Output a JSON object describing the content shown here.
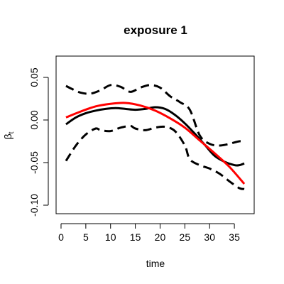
{
  "chart_data": {
    "type": "line",
    "title": "exposure 1",
    "xlabel": "time",
    "ylabel": "β",
    "ylabel_subscript": "t",
    "xlim": [
      -1,
      39
    ],
    "ylim": [
      -0.11,
      0.075
    ],
    "xticks": [
      0,
      5,
      10,
      15,
      20,
      25,
      30,
      35
    ],
    "yticks": [
      -0.1,
      -0.05,
      0.0,
      0.05
    ],
    "ytick_labels": [
      "-0.10",
      "-0.05",
      "0.00",
      "0.05"
    ],
    "grid": false,
    "legend": "none",
    "series": [
      {
        "style": "dashed",
        "color": "#000000",
        "width": 3,
        "x": [
          1,
          2,
          4,
          6,
          8,
          10,
          12,
          14,
          16,
          18,
          20,
          22,
          24,
          26,
          28,
          30,
          32,
          34,
          36,
          37
        ],
        "y": [
          0.04,
          0.037,
          0.032,
          0.031,
          0.035,
          0.041,
          0.039,
          0.033,
          0.038,
          0.041,
          0.038,
          0.028,
          0.021,
          0.012,
          -0.018,
          -0.028,
          -0.03,
          -0.028,
          -0.025,
          -0.026
        ]
      },
      {
        "style": "dashed",
        "color": "#000000",
        "width": 3,
        "x": [
          1,
          3,
          5,
          7,
          8,
          10,
          12,
          14,
          15,
          17,
          19,
          21,
          23,
          25,
          26,
          28,
          30,
          32,
          34,
          36,
          37
        ],
        "y": [
          -0.048,
          -0.03,
          -0.017,
          -0.01,
          -0.012,
          -0.013,
          -0.009,
          -0.007,
          -0.01,
          -0.012,
          -0.009,
          -0.008,
          -0.013,
          -0.03,
          -0.046,
          -0.053,
          -0.057,
          -0.063,
          -0.072,
          -0.08,
          -0.081
        ]
      },
      {
        "style": "solid",
        "color": "#000000",
        "width": 3,
        "x": [
          1,
          3,
          5,
          7,
          9,
          11,
          13,
          15,
          17,
          19,
          21,
          23,
          25,
          27,
          29,
          31,
          33,
          35,
          36,
          37
        ],
        "y": [
          -0.005,
          0.003,
          0.008,
          0.011,
          0.013,
          0.014,
          0.013,
          0.012,
          0.013,
          0.015,
          0.013,
          0.006,
          -0.004,
          -0.016,
          -0.029,
          -0.042,
          -0.049,
          -0.053,
          -0.053,
          -0.051
        ]
      },
      {
        "style": "solid",
        "color": "#ff0000",
        "width": 3,
        "x": [
          1,
          4,
          7,
          10,
          13,
          16,
          19,
          22,
          25,
          28,
          31,
          34,
          37
        ],
        "y": [
          0.003,
          0.01,
          0.016,
          0.019,
          0.02,
          0.017,
          0.011,
          0.002,
          -0.009,
          -0.024,
          -0.039,
          -0.055,
          -0.075
        ]
      }
    ]
  }
}
